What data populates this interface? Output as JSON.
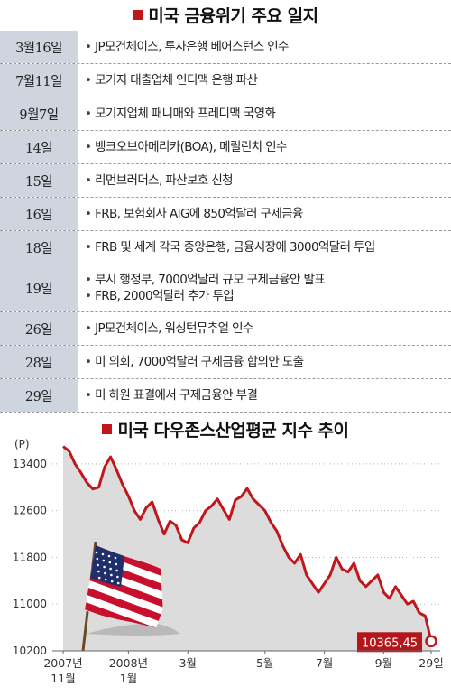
{
  "timeline": {
    "title": "미국 금융위기 주요 일지",
    "rows": [
      {
        "date": "3월16일",
        "events": [
          "JP모건체이스, 투자은행 베어스턴스 인수"
        ]
      },
      {
        "date": "7월11일",
        "events": [
          "모기지 대출업체 인디맥 은행 파산"
        ]
      },
      {
        "date": "9월7일",
        "events": [
          "모기지업체 패니매와 프레디맥 국영화"
        ]
      },
      {
        "date": "14일",
        "events": [
          "뱅크오브아메리카(BOA), 메릴린치 인수"
        ]
      },
      {
        "date": "15일",
        "events": [
          "리먼브러더스, 파산보호 신청"
        ]
      },
      {
        "date": "16일",
        "events": [
          "FRB, 보험회사 AIG에 850억달러 구제금융"
        ]
      },
      {
        "date": "18일",
        "events": [
          "FRB 및 세계 각국 중앙은행, 금융시장에 3000억달러 투입"
        ]
      },
      {
        "date": "19일",
        "events": [
          "부시 행정부, 7000억달러 규모 구제금융안 발표",
          "FRB, 2000억달러 추가 투입"
        ]
      },
      {
        "date": "26일",
        "events": [
          "JP모건체이스, 워싱턴뮤추얼 인수"
        ]
      },
      {
        "date": "28일",
        "events": [
          "미 의회, 7000억달러 구제금융 합의안 도출"
        ]
      },
      {
        "date": "29일",
        "events": [
          "미 하원 표결에서 구제금융안 부결"
        ]
      }
    ]
  },
  "colors": {
    "accent": "#c0171c",
    "date_cell": "#cfd5df",
    "area": "#dcdcdc",
    "line": "#c0171c"
  },
  "chart_data": {
    "type": "area",
    "title": "미국 다우존스산업평균 지수 추이",
    "ylabel": "(P)",
    "y_ticks": [
      10200,
      11000,
      11800,
      12600,
      13400
    ],
    "ylim": [
      10200,
      13800
    ],
    "x_ticks": [
      {
        "label": [
          "2007년",
          "11월"
        ],
        "index": 0
      },
      {
        "label": [
          "2008년",
          "1월"
        ],
        "index": 11
      },
      {
        "label": [
          "3월"
        ],
        "index": 21
      },
      {
        "label": [
          "5월"
        ],
        "index": 34
      },
      {
        "label": [
          "7월"
        ],
        "index": 44
      },
      {
        "label": [
          "9월"
        ],
        "index": 54
      },
      {
        "label": [
          "29일"
        ],
        "index": 62
      }
    ],
    "values": [
      13700,
      13620,
      13400,
      13250,
      13080,
      12970,
      13000,
      13350,
      13520,
      13300,
      13050,
      12850,
      12600,
      12450,
      12650,
      12750,
      12450,
      12200,
      12420,
      12350,
      12100,
      12050,
      12300,
      12400,
      12600,
      12680,
      12800,
      12620,
      12450,
      12780,
      12840,
      12980,
      12800,
      12700,
      12600,
      12400,
      12250,
      12000,
      11800,
      11700,
      11850,
      11500,
      11350,
      11200,
      11350,
      11500,
      11800,
      11600,
      11550,
      11700,
      11400,
      11300,
      11400,
      11500,
      11200,
      11100,
      11300,
      11150,
      11000,
      11050,
      10850,
      10800,
      10365.45
    ],
    "last_label": "10365.45",
    "annotation": "10365,45"
  }
}
